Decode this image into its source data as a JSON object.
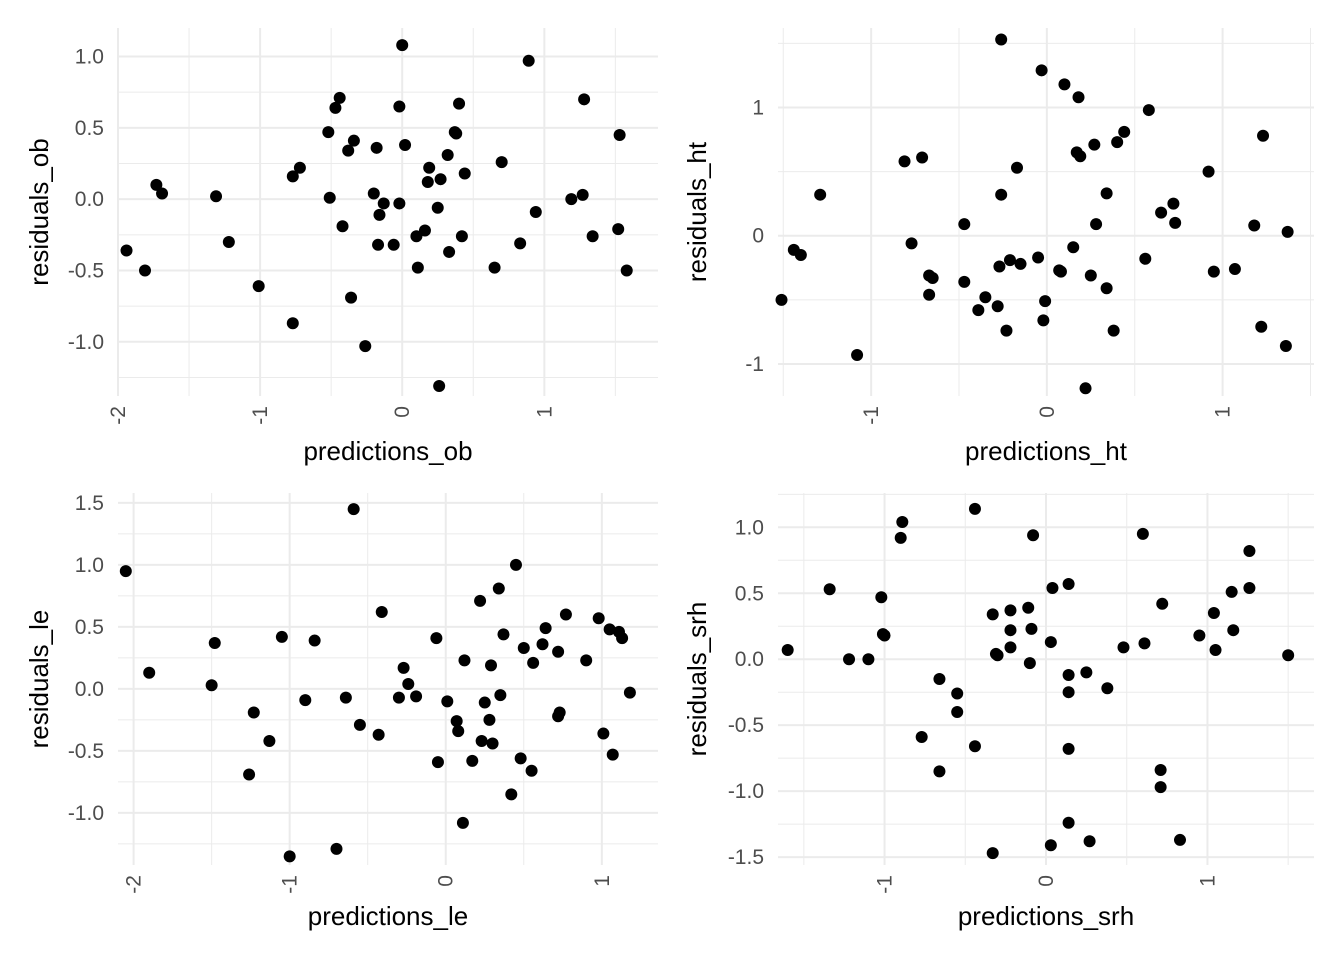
{
  "chart_data": [
    {
      "type": "scatter",
      "xlabel": "predictions_ob",
      "ylabel": "residuals_ob",
      "xlim": [
        -2.0,
        1.8
      ],
      "ylim": [
        -1.38,
        1.2
      ],
      "x_ticks": [
        -2,
        -1,
        0,
        1
      ],
      "x_tick_labels": [
        "-2",
        "-1",
        "0",
        "1"
      ],
      "y_ticks": [
        -1.0,
        -0.5,
        0.0,
        0.5,
        1.0
      ],
      "y_tick_labels": [
        "-1.0",
        "-0.5",
        "0.0",
        "0.5",
        "1.0"
      ],
      "grid": true,
      "points": [
        [
          -1.94,
          -0.36
        ],
        [
          -1.81,
          -0.5
        ],
        [
          -1.73,
          0.1
        ],
        [
          -1.69,
          0.04
        ],
        [
          -1.31,
          0.02
        ],
        [
          -1.22,
          -0.3
        ],
        [
          -1.01,
          -0.61
        ],
        [
          -0.77,
          -0.87
        ],
        [
          -0.77,
          0.16
        ],
        [
          -0.72,
          0.22
        ],
        [
          -0.52,
          0.47
        ],
        [
          -0.51,
          0.01
        ],
        [
          -0.47,
          0.64
        ],
        [
          -0.44,
          0.71
        ],
        [
          -0.42,
          -0.19
        ],
        [
          -0.38,
          0.34
        ],
        [
          -0.36,
          -0.69
        ],
        [
          -0.34,
          0.41
        ],
        [
          -0.26,
          -1.03
        ],
        [
          -0.2,
          0.04
        ],
        [
          -0.18,
          0.36
        ],
        [
          -0.17,
          -0.32
        ],
        [
          -0.16,
          -0.11
        ],
        [
          -0.13,
          -0.03
        ],
        [
          -0.06,
          -0.32
        ],
        [
          -0.02,
          0.65
        ],
        [
          -0.02,
          -0.03
        ],
        [
          0.0,
          1.08
        ],
        [
          0.02,
          0.38
        ],
        [
          0.1,
          -0.26
        ],
        [
          0.11,
          -0.48
        ],
        [
          0.16,
          -0.22
        ],
        [
          0.18,
          0.12
        ],
        [
          0.19,
          0.22
        ],
        [
          0.25,
          -0.06
        ],
        [
          0.26,
          -1.31
        ],
        [
          0.27,
          0.14
        ],
        [
          0.32,
          0.31
        ],
        [
          0.33,
          -0.37
        ],
        [
          0.37,
          0.47
        ],
        [
          0.38,
          0.46
        ],
        [
          0.4,
          0.67
        ],
        [
          0.42,
          -0.26
        ],
        [
          0.44,
          0.18
        ],
        [
          0.65,
          -0.48
        ],
        [
          0.7,
          0.26
        ],
        [
          0.83,
          -0.31
        ],
        [
          0.89,
          0.97
        ],
        [
          0.94,
          -0.09
        ],
        [
          1.19,
          0.0
        ],
        [
          1.27,
          0.03
        ],
        [
          1.28,
          0.7
        ],
        [
          1.34,
          -0.26
        ],
        [
          1.52,
          -0.21
        ],
        [
          1.53,
          0.45
        ],
        [
          1.58,
          -0.5
        ]
      ]
    },
    {
      "type": "scatter",
      "xlabel": "predictions_ht",
      "ylabel": "residuals_ht",
      "xlim": [
        -1.53,
        1.52
      ],
      "ylim": [
        -1.25,
        1.62
      ],
      "x_ticks": [
        -1,
        0,
        1
      ],
      "x_tick_labels": [
        "-1",
        "0",
        "1"
      ],
      "y_ticks": [
        -1,
        0,
        1
      ],
      "y_tick_labels": [
        "-1",
        "0",
        "1"
      ],
      "grid": true,
      "points": [
        [
          -1.51,
          -0.5
        ],
        [
          -1.44,
          -0.11
        ],
        [
          -1.4,
          -0.15
        ],
        [
          -1.29,
          0.32
        ],
        [
          -1.08,
          -0.93
        ],
        [
          -0.81,
          0.58
        ],
        [
          -0.77,
          -0.06
        ],
        [
          -0.71,
          0.61
        ],
        [
          -0.67,
          -0.46
        ],
        [
          -0.67,
          -0.31
        ],
        [
          -0.65,
          -0.33
        ],
        [
          -0.47,
          -0.36
        ],
        [
          -0.47,
          0.09
        ],
        [
          -0.39,
          -0.58
        ],
        [
          -0.35,
          -0.48
        ],
        [
          -0.28,
          -0.55
        ],
        [
          -0.27,
          -0.24
        ],
        [
          -0.26,
          0.32
        ],
        [
          -0.26,
          1.53
        ],
        [
          -0.23,
          -0.74
        ],
        [
          -0.21,
          -0.19
        ],
        [
          -0.17,
          0.53
        ],
        [
          -0.15,
          -0.22
        ],
        [
          -0.05,
          -0.17
        ],
        [
          -0.03,
          1.29
        ],
        [
          -0.02,
          -0.66
        ],
        [
          -0.01,
          -0.51
        ],
        [
          0.07,
          -0.27
        ],
        [
          0.08,
          -0.28
        ],
        [
          0.1,
          1.18
        ],
        [
          0.15,
          -0.09
        ],
        [
          0.17,
          0.65
        ],
        [
          0.18,
          1.08
        ],
        [
          0.19,
          0.62
        ],
        [
          0.22,
          -1.19
        ],
        [
          0.25,
          -0.31
        ],
        [
          0.27,
          0.71
        ],
        [
          0.28,
          0.09
        ],
        [
          0.34,
          -0.41
        ],
        [
          0.34,
          0.33
        ],
        [
          0.38,
          -0.74
        ],
        [
          0.4,
          0.73
        ],
        [
          0.44,
          0.81
        ],
        [
          0.56,
          -0.18
        ],
        [
          0.58,
          0.98
        ],
        [
          0.65,
          0.18
        ],
        [
          0.72,
          0.25
        ],
        [
          0.73,
          0.1
        ],
        [
          0.92,
          0.5
        ],
        [
          0.95,
          -0.28
        ],
        [
          1.07,
          -0.26
        ],
        [
          1.18,
          0.08
        ],
        [
          1.22,
          -0.71
        ],
        [
          1.23,
          0.78
        ],
        [
          1.36,
          -0.86
        ],
        [
          1.37,
          0.03
        ]
      ]
    },
    {
      "type": "scatter",
      "xlabel": "predictions_le",
      "ylabel": "residuals_le",
      "xlim": [
        -2.1,
        1.36
      ],
      "ylim": [
        -1.42,
        1.58
      ],
      "x_ticks": [
        -2,
        -1,
        0,
        1
      ],
      "x_tick_labels": [
        "-2",
        "-1",
        "0",
        "1"
      ],
      "y_ticks": [
        -1.0,
        -0.5,
        0.0,
        0.5,
        1.0,
        1.5
      ],
      "y_tick_labels": [
        "-1.0",
        "-0.5",
        "0.0",
        "0.5",
        "1.0",
        "1.5"
      ],
      "grid": true,
      "points": [
        [
          -2.05,
          0.95
        ],
        [
          -1.9,
          0.13
        ],
        [
          -1.5,
          0.03
        ],
        [
          -1.48,
          0.37
        ],
        [
          -1.26,
          -0.69
        ],
        [
          -1.23,
          -0.19
        ],
        [
          -1.13,
          -0.42
        ],
        [
          -1.05,
          0.42
        ],
        [
          -1.0,
          -1.35
        ],
        [
          -0.9,
          -0.09
        ],
        [
          -0.84,
          0.39
        ],
        [
          -0.7,
          -1.29
        ],
        [
          -0.64,
          -0.07
        ],
        [
          -0.59,
          1.45
        ],
        [
          -0.55,
          -0.29
        ],
        [
          -0.43,
          -0.37
        ],
        [
          -0.41,
          0.62
        ],
        [
          -0.3,
          -0.07
        ],
        [
          -0.27,
          0.17
        ],
        [
          -0.24,
          0.04
        ],
        [
          -0.19,
          -0.06
        ],
        [
          -0.06,
          0.41
        ],
        [
          -0.05,
          -0.59
        ],
        [
          0.01,
          -0.1
        ],
        [
          0.07,
          -0.26
        ],
        [
          0.08,
          -0.34
        ],
        [
          0.11,
          -1.08
        ],
        [
          0.12,
          0.23
        ],
        [
          0.17,
          -0.58
        ],
        [
          0.22,
          0.71
        ],
        [
          0.23,
          -0.42
        ],
        [
          0.25,
          -0.11
        ],
        [
          0.28,
          -0.25
        ],
        [
          0.29,
          0.19
        ],
        [
          0.3,
          -0.44
        ],
        [
          0.34,
          0.81
        ],
        [
          0.35,
          -0.05
        ],
        [
          0.37,
          0.44
        ],
        [
          0.42,
          -0.85
        ],
        [
          0.45,
          1.0
        ],
        [
          0.48,
          -0.56
        ],
        [
          0.5,
          0.33
        ],
        [
          0.55,
          -0.66
        ],
        [
          0.56,
          0.21
        ],
        [
          0.62,
          0.36
        ],
        [
          0.64,
          0.49
        ],
        [
          0.72,
          0.3
        ],
        [
          0.72,
          -0.22
        ],
        [
          0.73,
          -0.19
        ],
        [
          0.77,
          0.6
        ],
        [
          0.9,
          0.23
        ],
        [
          0.98,
          0.57
        ],
        [
          1.01,
          -0.36
        ],
        [
          1.05,
          0.48
        ],
        [
          1.07,
          -0.53
        ],
        [
          1.11,
          0.46
        ],
        [
          1.13,
          0.41
        ],
        [
          1.18,
          -0.03
        ]
      ]
    },
    {
      "type": "scatter",
      "xlabel": "predictions_srh",
      "ylabel": "residuals_srh",
      "xlim": [
        -1.66,
        1.66
      ],
      "ylim": [
        -1.56,
        1.26
      ],
      "x_ticks": [
        -1,
        0,
        1
      ],
      "x_tick_labels": [
        "-1",
        "0",
        "1"
      ],
      "y_ticks": [
        -1.5,
        -1.0,
        -0.5,
        0.0,
        0.5,
        1.0
      ],
      "y_tick_labels": [
        "-1.5",
        "-1.0",
        "-0.5",
        "0.0",
        "0.5",
        "1.0"
      ],
      "grid": true,
      "points": [
        [
          -1.6,
          0.07
        ],
        [
          -1.34,
          0.53
        ],
        [
          -1.22,
          0.0
        ],
        [
          -1.1,
          0.0
        ],
        [
          -1.02,
          0.47
        ],
        [
          -1.01,
          0.19
        ],
        [
          -1.0,
          0.18
        ],
        [
          -0.9,
          0.92
        ],
        [
          -0.89,
          1.04
        ],
        [
          -0.77,
          -0.59
        ],
        [
          -0.66,
          -0.85
        ],
        [
          -0.66,
          -0.15
        ],
        [
          -0.55,
          -0.26
        ],
        [
          -0.55,
          -0.4
        ],
        [
          -0.44,
          1.14
        ],
        [
          -0.44,
          -0.66
        ],
        [
          -0.33,
          -1.47
        ],
        [
          -0.33,
          0.34
        ],
        [
          -0.31,
          0.04
        ],
        [
          -0.3,
          0.03
        ],
        [
          -0.22,
          0.37
        ],
        [
          -0.22,
          0.22
        ],
        [
          -0.22,
          0.09
        ],
        [
          -0.11,
          0.39
        ],
        [
          -0.1,
          -0.03
        ],
        [
          -0.09,
          0.23
        ],
        [
          -0.08,
          0.94
        ],
        [
          0.03,
          0.13
        ],
        [
          0.03,
          -1.41
        ],
        [
          0.04,
          0.54
        ],
        [
          0.14,
          -0.25
        ],
        [
          0.14,
          -0.12
        ],
        [
          0.14,
          0.57
        ],
        [
          0.14,
          -0.68
        ],
        [
          0.14,
          -1.24
        ],
        [
          0.25,
          -0.1
        ],
        [
          0.27,
          -1.38
        ],
        [
          0.38,
          -0.22
        ],
        [
          0.48,
          0.09
        ],
        [
          0.6,
          0.95
        ],
        [
          0.61,
          0.12
        ],
        [
          0.71,
          -0.84
        ],
        [
          0.71,
          -0.97
        ],
        [
          0.72,
          0.42
        ],
        [
          0.83,
          -1.37
        ],
        [
          0.95,
          0.18
        ],
        [
          1.04,
          0.35
        ],
        [
          1.05,
          0.07
        ],
        [
          1.15,
          0.51
        ],
        [
          1.16,
          0.22
        ],
        [
          1.26,
          0.82
        ],
        [
          1.26,
          0.54
        ],
        [
          1.5,
          0.03
        ]
      ]
    }
  ]
}
